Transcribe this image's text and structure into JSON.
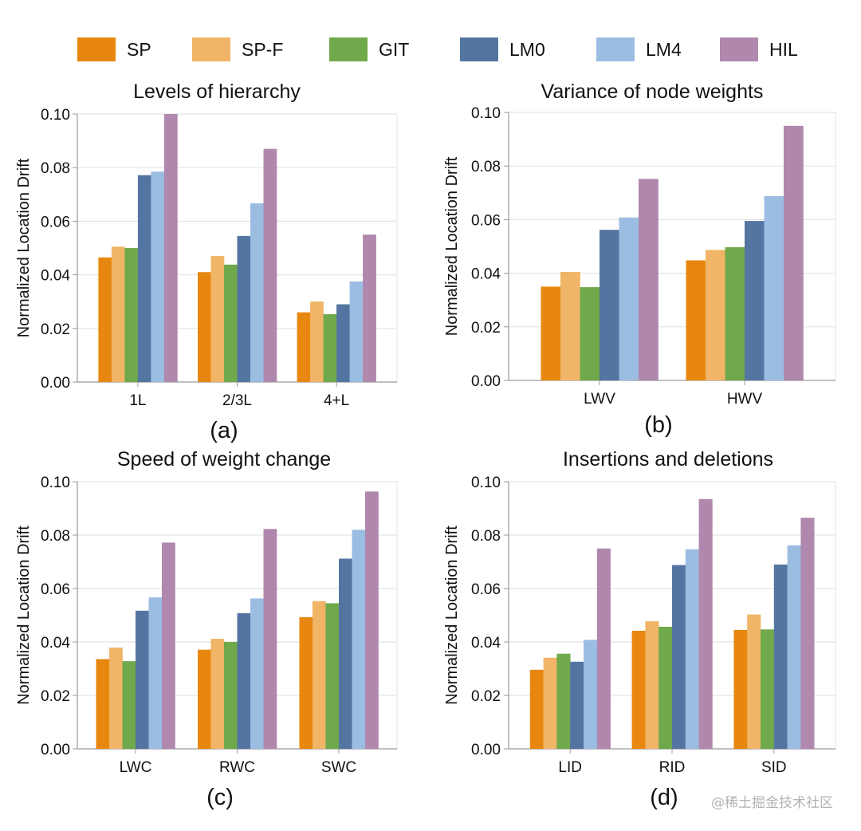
{
  "legend": [
    {
      "name": "SP",
      "color": "#e8870f"
    },
    {
      "name": "SP-F",
      "color": "#f0b566"
    },
    {
      "name": "GIT",
      "color": "#6fa94b"
    },
    {
      "name": "LM0",
      "color": "#5475a1"
    },
    {
      "name": "LM4",
      "color": "#9cbde2"
    },
    {
      "name": "HIL",
      "color": "#b087ad"
    }
  ],
  "chart_data": [
    {
      "type": "bar",
      "title": "Levels of hierarchy",
      "caption": "(a)",
      "ylabel": "Normalized Location Drift",
      "xlabel": "",
      "ylim": [
        0,
        0.1
      ],
      "yticks": [
        "0.00",
        "0.02",
        "0.04",
        "0.06",
        "0.08",
        "0.10"
      ],
      "grid": true,
      "categories": [
        "1L",
        "2/3L",
        "4+L"
      ],
      "series": [
        {
          "name": "SP",
          "values": [
            0.0465,
            0.041,
            0.026
          ]
        },
        {
          "name": "SP-F",
          "values": [
            0.0505,
            0.047,
            0.03
          ]
        },
        {
          "name": "GIT",
          "values": [
            0.05,
            0.0438,
            0.0253
          ]
        },
        {
          "name": "LM0",
          "values": [
            0.0772,
            0.0545,
            0.029
          ]
        },
        {
          "name": "LM4",
          "values": [
            0.0785,
            0.0667,
            0.0375
          ]
        },
        {
          "name": "HIL",
          "values": [
            0.1,
            0.087,
            0.055
          ]
        }
      ]
    },
    {
      "type": "bar",
      "title": "Variance of node weights",
      "caption": "(b)",
      "ylabel": "Normalized Location Drift",
      "xlabel": "",
      "ylim": [
        0,
        0.1
      ],
      "yticks": [
        "0.00",
        "0.02",
        "0.04",
        "0.06",
        "0.08",
        "0.10"
      ],
      "grid": true,
      "categories": [
        "LWV",
        "HWV"
      ],
      "series": [
        {
          "name": "SP",
          "values": [
            0.035,
            0.0448
          ]
        },
        {
          "name": "SP-F",
          "values": [
            0.0405,
            0.0487
          ]
        },
        {
          "name": "GIT",
          "values": [
            0.0348,
            0.0497
          ]
        },
        {
          "name": "LM0",
          "values": [
            0.0562,
            0.0595
          ]
        },
        {
          "name": "LM4",
          "values": [
            0.0608,
            0.0688
          ]
        },
        {
          "name": "HIL",
          "values": [
            0.0752,
            0.095
          ]
        }
      ]
    },
    {
      "type": "bar",
      "title": "Speed of weight change",
      "caption": "(c)",
      "ylabel": "Normalized Location Drift",
      "xlabel": "",
      "ylim": [
        0,
        0.1
      ],
      "yticks": [
        "0.00",
        "0.02",
        "0.04",
        "0.06",
        "0.08",
        "0.10"
      ],
      "grid": true,
      "categories": [
        "LWC",
        "RWC",
        "SWC"
      ],
      "series": [
        {
          "name": "SP",
          "values": [
            0.0336,
            0.0371,
            0.0493
          ]
        },
        {
          "name": "SP-F",
          "values": [
            0.0379,
            0.0412,
            0.0553
          ]
        },
        {
          "name": "GIT",
          "values": [
            0.0328,
            0.04,
            0.0545
          ]
        },
        {
          "name": "LM0",
          "values": [
            0.0517,
            0.0508,
            0.0712
          ]
        },
        {
          "name": "LM4",
          "values": [
            0.0567,
            0.0563,
            0.082
          ]
        },
        {
          "name": "HIL",
          "values": [
            0.0772,
            0.0823,
            0.0963
          ]
        }
      ]
    },
    {
      "type": "bar",
      "title": "Insertions and deletions",
      "caption": "(d)",
      "ylabel": "Normalized Location Drift",
      "xlabel": "",
      "ylim": [
        0,
        0.1
      ],
      "yticks": [
        "0.00",
        "0.02",
        "0.04",
        "0.06",
        "0.08",
        "0.10"
      ],
      "grid": true,
      "categories": [
        "LID",
        "RID",
        "SID"
      ],
      "series": [
        {
          "name": "SP",
          "values": [
            0.0296,
            0.0442,
            0.0445
          ]
        },
        {
          "name": "SP-F",
          "values": [
            0.0341,
            0.0478,
            0.0503
          ]
        },
        {
          "name": "GIT",
          "values": [
            0.0356,
            0.0457,
            0.0447
          ]
        },
        {
          "name": "LM0",
          "values": [
            0.0326,
            0.0688,
            0.069
          ]
        },
        {
          "name": "LM4",
          "values": [
            0.0408,
            0.0747,
            0.0762
          ]
        },
        {
          "name": "HIL",
          "values": [
            0.075,
            0.0935,
            0.0865
          ]
        }
      ]
    }
  ],
  "watermark": "@稀土掘金技术社区"
}
